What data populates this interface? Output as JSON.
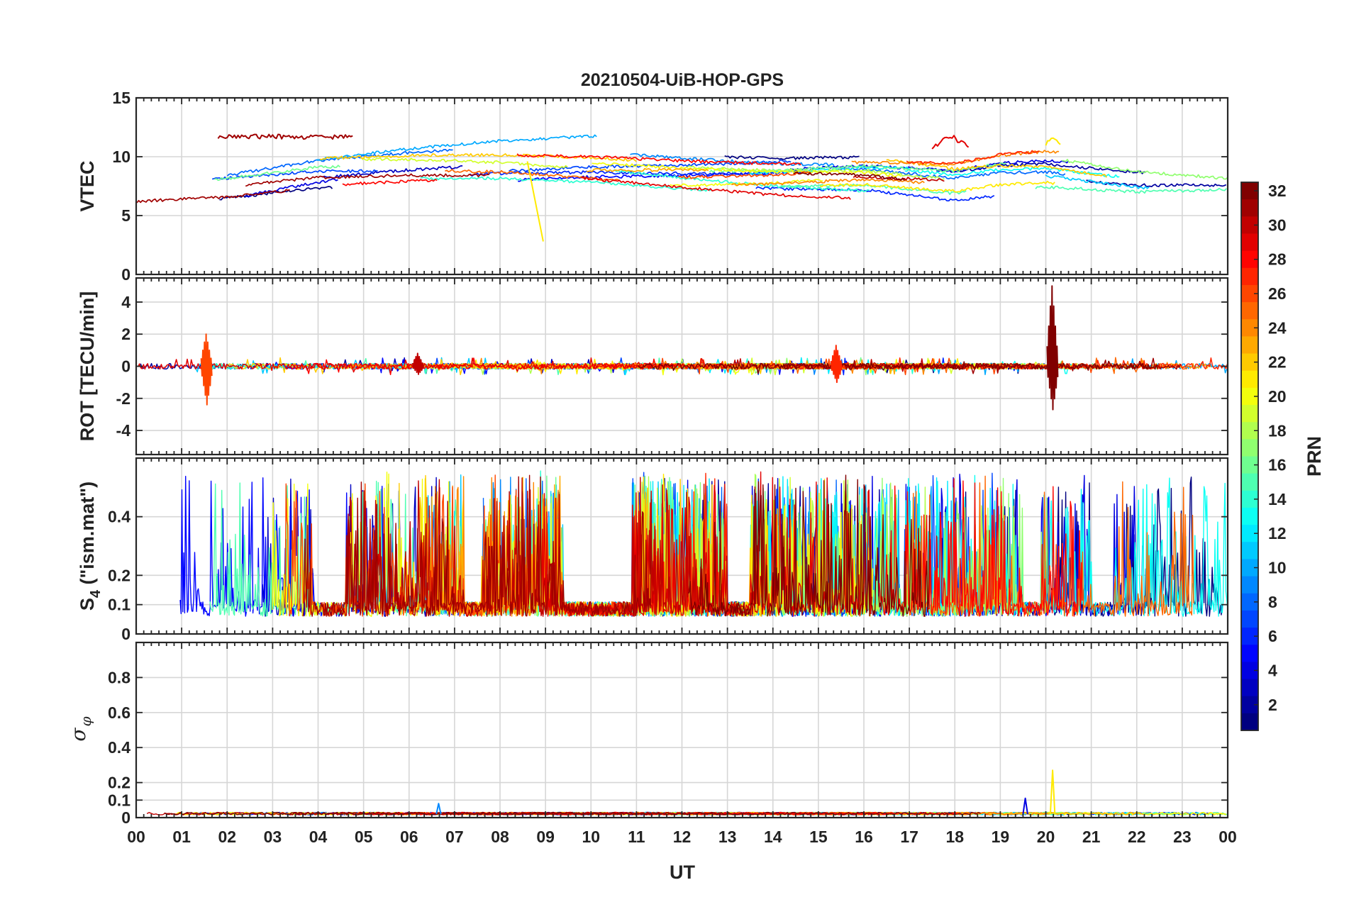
{
  "chart_data": {
    "type": "line",
    "title": "20210504-UiB-HOP-GPS",
    "xlabel": "UT",
    "x_ticks": [
      "00",
      "01",
      "02",
      "03",
      "04",
      "05",
      "06",
      "07",
      "08",
      "09",
      "10",
      "11",
      "12",
      "13",
      "14",
      "15",
      "16",
      "17",
      "18",
      "19",
      "20",
      "21",
      "22",
      "23",
      "00"
    ],
    "xlim_hours": [
      0,
      24
    ],
    "colorbar": {
      "label": "PRN",
      "range": [
        1,
        32
      ],
      "ticks": [
        "2",
        "4",
        "6",
        "8",
        "10",
        "12",
        "14",
        "16",
        "18",
        "20",
        "22",
        "24",
        "26",
        "28",
        "30",
        "32"
      ],
      "colormap": "jet"
    },
    "panels": [
      {
        "id": "vtec",
        "ylabel": "VTEC",
        "ylim": [
          0,
          15
        ],
        "yticks": [
          "0",
          "5",
          "10",
          "15"
        ],
        "ytick_values": [
          0,
          5,
          10,
          15
        ],
        "baseline_profile": [
          [
            0,
            7.0
          ],
          [
            2,
            7.6
          ],
          [
            4,
            8.6
          ],
          [
            6,
            9.0
          ],
          [
            8,
            9.2
          ],
          [
            10,
            9.1
          ],
          [
            12,
            8.8
          ],
          [
            14,
            8.6
          ],
          [
            16,
            8.7
          ],
          [
            18,
            8.0
          ],
          [
            19,
            8.5
          ],
          [
            20,
            8.6
          ],
          [
            22,
            7.8
          ],
          [
            24,
            7.6
          ]
        ],
        "spread": 1.3,
        "noise": 0.25,
        "annotations": [
          {
            "prn": 31,
            "start": 1.8,
            "end": 4.8,
            "level": 11.7,
            "note": "high arc"
          },
          {
            "prn": 21,
            "start": 8.6,
            "end": 8.95,
            "level_from": 9.6,
            "level_to": 2.8,
            "note": "drop"
          },
          {
            "prn": 29,
            "start": 17.5,
            "end": 18.3,
            "level": 11.8,
            "note": "peak"
          },
          {
            "prn": 21,
            "start": 20.0,
            "end": 20.35,
            "level": 11.5,
            "note": "peak"
          }
        ]
      },
      {
        "id": "rot",
        "ylabel": "ROT [TECU/min]",
        "ylim": [
          -5.5,
          5.5
        ],
        "yticks": [
          "-4",
          "-2",
          "0",
          "2",
          "4"
        ],
        "ytick_values": [
          -4,
          -2,
          0,
          2,
          4
        ],
        "noise": 0.18,
        "spikes": [
          {
            "t": 1.55,
            "max": 2.0,
            "min": -2.4
          },
          {
            "t": 20.15,
            "max": 5.0,
            "min": -2.7
          },
          {
            "t": 6.2,
            "max": 0.8,
            "min": -0.5
          },
          {
            "t": 15.4,
            "max": 1.3,
            "min": -1.0
          }
        ]
      },
      {
        "id": "s4",
        "ylabel": "S4 (\"ism.mat\")",
        "ylabel_main": "S",
        "ylabel_sub": "4",
        "ylabel_rest": " (\"ism.mat\")",
        "ylim": [
          0,
          0.6
        ],
        "yticks": [
          "0",
          "0.1",
          "0.2",
          "0.4"
        ],
        "ytick_values": [
          0,
          0.1,
          0.2,
          0.4
        ],
        "floor": 0.06,
        "burst_windows": [
          [
            0,
            1.4
          ],
          [
            1.6,
            3.9
          ],
          [
            4.6,
            6.3
          ],
          [
            6.3,
            7.2
          ],
          [
            7.6,
            9.4
          ],
          [
            10.9,
            13.0
          ],
          [
            13.5,
            16.8
          ],
          [
            16.9,
            18.6
          ],
          [
            18.6,
            19.5
          ],
          [
            19.9,
            21.0
          ],
          [
            21.5,
            23.3
          ],
          [
            23.3,
            24
          ]
        ]
      },
      {
        "id": "sigma_phi",
        "ylabel": "σφ",
        "ylabel_main": "σ",
        "ylabel_sub": "φ",
        "ylim": [
          0,
          1
        ],
        "yticks": [
          "0",
          "0.1",
          "0.2",
          "0.4",
          "0.6",
          "0.8"
        ],
        "ytick_values": [
          0,
          0.1,
          0.2,
          0.4,
          0.6,
          0.8
        ],
        "floor": 0.02,
        "spikes": [
          {
            "t": 19.55,
            "value": 0.11
          },
          {
            "t": 20.15,
            "value": 0.27
          },
          {
            "t": 6.65,
            "value": 0.08
          },
          {
            "t": 18.0,
            "value": 0.03
          }
        ]
      }
    ]
  }
}
